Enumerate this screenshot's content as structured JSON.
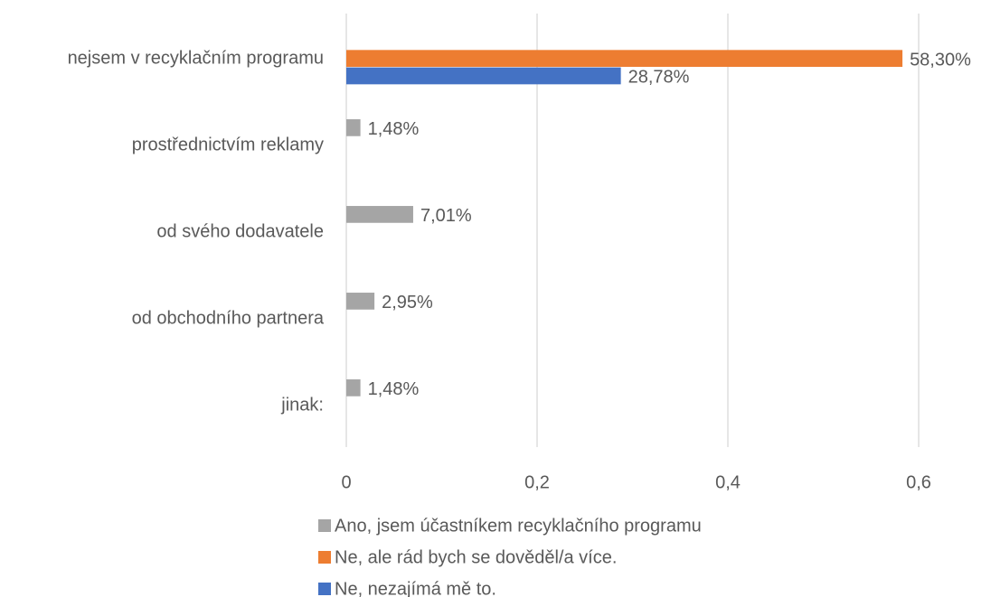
{
  "chart_data": {
    "type": "hbar",
    "categories": [
      "nejsem v recyklačním programu",
      "prostřednictvím reklamy",
      "od svého dodavatele",
      "od obchodního partnera",
      "jinak:"
    ],
    "series": [
      {
        "name": "Ano, jsem účastníkem recyklačního programu",
        "color": "#a5a5a5",
        "values": [
          null,
          0.0148,
          0.0701,
          0.0295,
          0.0148
        ],
        "value_labels": [
          null,
          "1,48%",
          "7,01%",
          "2,95%",
          "1,48%"
        ]
      },
      {
        "name": "Ne, ale rád bych se dověděl/a více.",
        "color": "#ed7d31",
        "values": [
          0.583,
          null,
          null,
          null,
          null
        ],
        "value_labels": [
          "58,30%",
          null,
          null,
          null,
          null
        ]
      },
      {
        "name": "Ne, nezajímá mě to.",
        "color": "#4472c4",
        "values": [
          0.2878,
          null,
          null,
          null,
          null
        ],
        "value_labels": [
          "28,78%",
          null,
          null,
          null,
          null
        ]
      }
    ],
    "xlim": [
      0,
      0.6
    ],
    "xticks": [
      0,
      {
        "value": 0.2,
        "label": "0,2"
      },
      {
        "value": 0.4,
        "label": "0,4"
      },
      {
        "value": 0.6,
        "label": "0,6"
      }
    ],
    "grid": true,
    "legend": "bottom"
  }
}
